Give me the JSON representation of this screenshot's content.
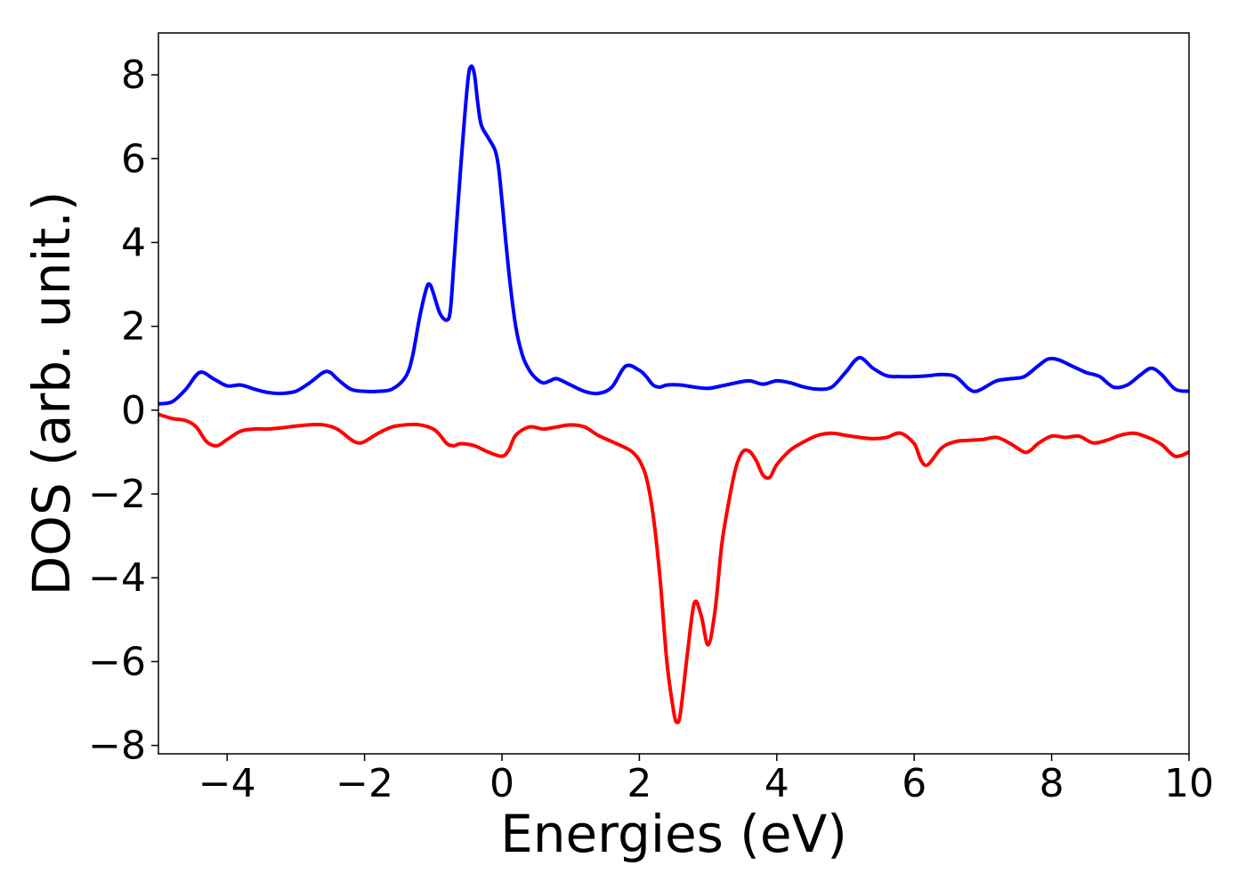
{
  "chart_data": {
    "type": "line",
    "title": "",
    "xlabel": "Energies (eV)",
    "ylabel": "DOS (arb. unit.)",
    "xlim": [
      -5,
      10
    ],
    "ylim": [
      -8.2,
      9.0
    ],
    "grid": false,
    "legend": "none",
    "xticks": [
      -4,
      -2,
      0,
      2,
      4,
      6,
      8,
      10
    ],
    "yticks": [
      -8,
      -6,
      -4,
      -2,
      0,
      2,
      4,
      6,
      8
    ],
    "series": [
      {
        "color": "#0000ff",
        "x": [
          -5.0,
          -4.8,
          -4.6,
          -4.4,
          -4.2,
          -4.0,
          -3.8,
          -3.6,
          -3.4,
          -3.2,
          -3.0,
          -2.8,
          -2.6,
          -2.5,
          -2.4,
          -2.2,
          -2.0,
          -1.8,
          -1.6,
          -1.4,
          -1.3,
          -1.2,
          -1.1,
          -1.05,
          -1.0,
          -0.9,
          -0.8,
          -0.75,
          -0.7,
          -0.6,
          -0.5,
          -0.45,
          -0.4,
          -0.35,
          -0.3,
          -0.2,
          -0.1,
          -0.05,
          0.0,
          0.1,
          0.2,
          0.3,
          0.4,
          0.5,
          0.6,
          0.7,
          0.8,
          1.0,
          1.2,
          1.4,
          1.6,
          1.8,
          2.0,
          2.1,
          2.2,
          2.3,
          2.4,
          2.6,
          2.8,
          3.0,
          3.2,
          3.4,
          3.6,
          3.8,
          4.0,
          4.2,
          4.4,
          4.6,
          4.8,
          5.0,
          5.2,
          5.4,
          5.6,
          5.8,
          6.0,
          6.2,
          6.4,
          6.6,
          6.8,
          6.9,
          7.0,
          7.2,
          7.4,
          7.6,
          7.8,
          7.95,
          8.1,
          8.3,
          8.5,
          8.7,
          8.9,
          9.1,
          9.3,
          9.45,
          9.6,
          9.8,
          10.0
        ],
        "y": [
          0.15,
          0.2,
          0.5,
          0.9,
          0.75,
          0.58,
          0.6,
          0.5,
          0.42,
          0.4,
          0.45,
          0.65,
          0.9,
          0.9,
          0.75,
          0.5,
          0.45,
          0.45,
          0.5,
          0.8,
          1.3,
          2.2,
          2.9,
          3.0,
          2.8,
          2.3,
          2.15,
          2.4,
          3.5,
          5.8,
          7.8,
          8.2,
          8.0,
          7.3,
          6.8,
          6.5,
          6.2,
          5.8,
          5.0,
          3.3,
          2.0,
          1.3,
          0.95,
          0.75,
          0.65,
          0.7,
          0.75,
          0.6,
          0.45,
          0.4,
          0.55,
          1.05,
          0.95,
          0.8,
          0.6,
          0.55,
          0.6,
          0.6,
          0.55,
          0.52,
          0.58,
          0.65,
          0.7,
          0.62,
          0.7,
          0.65,
          0.55,
          0.5,
          0.55,
          0.9,
          1.25,
          1.0,
          0.82,
          0.8,
          0.8,
          0.82,
          0.85,
          0.8,
          0.5,
          0.45,
          0.52,
          0.7,
          0.75,
          0.8,
          1.05,
          1.22,
          1.2,
          1.05,
          0.9,
          0.8,
          0.55,
          0.6,
          0.85,
          1.0,
          0.85,
          0.5,
          0.45
        ]
      },
      {
        "color": "#ff0000",
        "x": [
          -5.0,
          -4.8,
          -4.6,
          -4.45,
          -4.3,
          -4.15,
          -4.0,
          -3.8,
          -3.6,
          -3.4,
          -3.2,
          -3.0,
          -2.8,
          -2.6,
          -2.4,
          -2.2,
          -2.1,
          -2.0,
          -1.8,
          -1.6,
          -1.4,
          -1.2,
          -1.0,
          -0.9,
          -0.8,
          -0.7,
          -0.6,
          -0.4,
          -0.2,
          0.0,
          0.1,
          0.2,
          0.4,
          0.6,
          0.8,
          1.0,
          1.2,
          1.4,
          1.6,
          1.8,
          1.9,
          2.0,
          2.1,
          2.2,
          2.3,
          2.4,
          2.5,
          2.55,
          2.6,
          2.7,
          2.8,
          2.9,
          3.0,
          3.1,
          3.2,
          3.3,
          3.4,
          3.5,
          3.6,
          3.7,
          3.8,
          3.9,
          4.0,
          4.2,
          4.4,
          4.6,
          4.8,
          5.0,
          5.2,
          5.4,
          5.6,
          5.8,
          6.0,
          6.1,
          6.2,
          6.4,
          6.6,
          6.8,
          7.0,
          7.2,
          7.4,
          7.6,
          7.7,
          7.8,
          8.0,
          8.2,
          8.4,
          8.6,
          8.8,
          9.0,
          9.2,
          9.4,
          9.6,
          9.8,
          10.0
        ],
        "y": [
          -0.1,
          -0.2,
          -0.25,
          -0.4,
          -0.75,
          -0.85,
          -0.7,
          -0.5,
          -0.45,
          -0.45,
          -0.42,
          -0.38,
          -0.35,
          -0.35,
          -0.45,
          -0.7,
          -0.78,
          -0.75,
          -0.55,
          -0.4,
          -0.35,
          -0.35,
          -0.45,
          -0.6,
          -0.8,
          -0.85,
          -0.8,
          -0.85,
          -1.0,
          -1.1,
          -0.95,
          -0.6,
          -0.4,
          -0.45,
          -0.4,
          -0.35,
          -0.4,
          -0.6,
          -0.75,
          -0.9,
          -1.0,
          -1.2,
          -1.6,
          -2.5,
          -4.0,
          -6.0,
          -7.2,
          -7.45,
          -7.2,
          -5.8,
          -4.6,
          -4.9,
          -5.6,
          -4.8,
          -3.2,
          -2.2,
          -1.4,
          -1.0,
          -0.98,
          -1.2,
          -1.55,
          -1.6,
          -1.3,
          -0.95,
          -0.75,
          -0.6,
          -0.55,
          -0.6,
          -0.65,
          -0.68,
          -0.65,
          -0.55,
          -0.8,
          -1.2,
          -1.3,
          -0.9,
          -0.75,
          -0.72,
          -0.7,
          -0.65,
          -0.8,
          -1.0,
          -0.95,
          -0.8,
          -0.62,
          -0.65,
          -0.62,
          -0.78,
          -0.72,
          -0.6,
          -0.55,
          -0.65,
          -0.82,
          -1.1,
          -1.0
        ]
      }
    ]
  }
}
